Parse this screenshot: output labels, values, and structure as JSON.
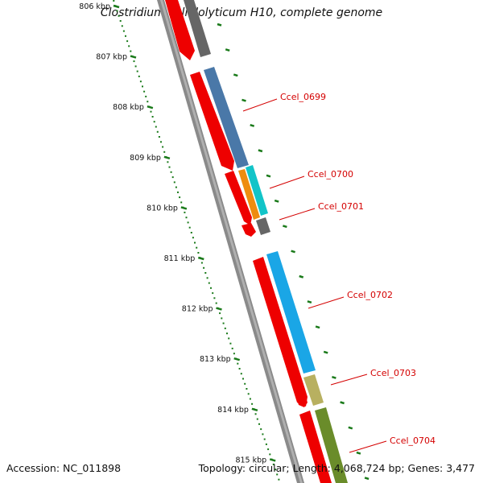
{
  "title": "Clostridium cellulolyticum H10, complete genome",
  "footer": {
    "accession": "Accession: NC_011898",
    "stats": "Topology: circular; Length: 4,068,724 bp; Genes: 3,477"
  },
  "scale": {
    "ticks": [
      "806 kbp",
      "807 kbp",
      "808 kbp",
      "809 kbp",
      "810 kbp",
      "811 kbp",
      "812 kbp",
      "813 kbp",
      "814 kbp",
      "815 kbp"
    ]
  },
  "genes": [
    {
      "name": "Ccel_0699"
    },
    {
      "name": "Ccel_0700"
    },
    {
      "name": "Ccel_0701"
    },
    {
      "name": "Ccel_0702"
    },
    {
      "name": "Ccel_0703"
    },
    {
      "name": "Ccel_0704"
    }
  ],
  "colors": {
    "backbone": "#888888",
    "cds_strand": "#ee0000",
    "tick": "#1a7a1a",
    "label": "#d40000",
    "gene_blue": "#4a78a8",
    "gene_orange": "#ee8c10",
    "gene_cyan": "#12c4c8",
    "gene_gray": "#666666",
    "gene_sky": "#1aa6e6",
    "gene_khaki": "#b8b060",
    "gene_olive": "#6a8c2a"
  }
}
